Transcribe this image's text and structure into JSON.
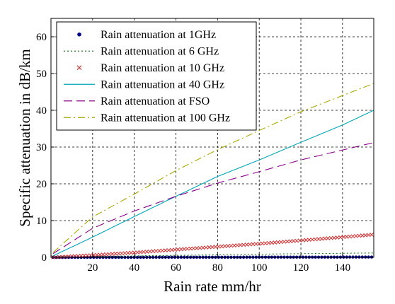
{
  "chart_data": {
    "type": "line",
    "title": "",
    "xlabel": "Rain rate mm/hr",
    "ylabel": "Specific attenuation in dB/km",
    "xlim": [
      0,
      155
    ],
    "ylim": [
      0,
      65
    ],
    "xticks": [
      20,
      40,
      60,
      80,
      100,
      120,
      140
    ],
    "yticks": [
      0,
      10,
      20,
      30,
      40,
      50,
      60
    ],
    "grid": true,
    "grid_style": "dashed",
    "legend_position": "top-left",
    "series": [
      {
        "name": "Rain attenuation at 1GHz",
        "color": "#00008b",
        "style": "markers",
        "marker": "dot",
        "x": [
          1,
          20,
          40,
          60,
          80,
          100,
          120,
          140,
          155
        ],
        "y": [
          0.0,
          0.01,
          0.02,
          0.03,
          0.04,
          0.05,
          0.06,
          0.07,
          0.08
        ]
      },
      {
        "name": "Rain attenuation at 6 GHz",
        "color": "#1a7a1a",
        "style": "dotted",
        "x": [
          1,
          20,
          40,
          60,
          80,
          100,
          120,
          140,
          155
        ],
        "y": [
          0.0,
          0.2,
          0.4,
          0.55,
          0.7,
          0.85,
          1.0,
          1.1,
          1.2
        ]
      },
      {
        "name": "Rain attenuation at 10 GHz",
        "color": "#d03030",
        "style": "markers",
        "marker": "x",
        "x": [
          1,
          20,
          40,
          60,
          80,
          100,
          120,
          140,
          155
        ],
        "y": [
          0.01,
          0.6,
          1.3,
          2.1,
          2.9,
          3.7,
          4.6,
          5.5,
          6.2
        ]
      },
      {
        "name": "Rain attenuation at 40 GHz",
        "color": "#00a6b8",
        "style": "solid",
        "x": [
          1,
          20,
          40,
          60,
          80,
          100,
          120,
          140,
          155
        ],
        "y": [
          0.4,
          5.5,
          11.1,
          16.6,
          22.0,
          26.5,
          31.3,
          36.0,
          40.0
        ]
      },
      {
        "name": "Rain attenuation at FSO",
        "color": "#8b008b",
        "style": "dashed",
        "x": [
          1,
          20,
          40,
          60,
          80,
          100,
          120,
          140,
          155
        ],
        "y": [
          1.0,
          7.9,
          12.6,
          16.6,
          20.2,
          23.3,
          26.5,
          29.2,
          31.2
        ]
      },
      {
        "name": "Rain attenuation at 100 GHz",
        "color": "#a8a800",
        "style": "dashdot",
        "x": [
          1,
          20,
          40,
          60,
          80,
          100,
          120,
          140,
          155
        ],
        "y": [
          1.3,
          11.0,
          17.2,
          23.6,
          29.3,
          34.5,
          39.6,
          44.0,
          47.3
        ]
      }
    ]
  }
}
